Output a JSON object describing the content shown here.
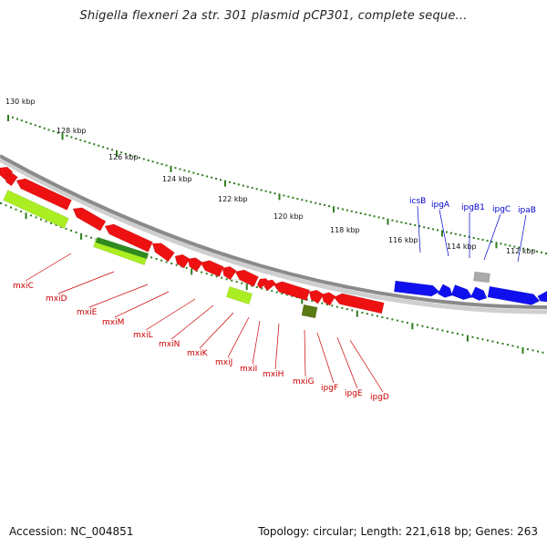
{
  "title": "Shigella flexneri 2a str. 301 plasmid pCP301, complete seque...",
  "footer": {
    "accession": "Accession: NC_004851",
    "topology": "Topology: circular; Length: 221,618 bp; Genes: 263"
  },
  "colors": {
    "backbone": "#8a8a8a",
    "tick": "#2e7d1e",
    "red_gene": "#ee1111",
    "blue_gene": "#1010ee",
    "lime_gene": "#aaee22",
    "dark_green_gene": "#2f8a1f",
    "olive_gene": "#5a7a14",
    "grey_gene": "#aaaaaa",
    "red_label": "#cc0000",
    "blue_label": "#0000cc"
  },
  "tick_labels": [
    "130 kbp",
    "128 kbp",
    "126 kbp",
    "124 kbp",
    "122 kbp",
    "120 kbp",
    "118 kbp",
    "116 kbp",
    "114 kbp",
    "112 kbp"
  ],
  "red_labels": [
    "mxiC",
    "mxiD",
    "mxiE",
    "mxiM",
    "mxiL",
    "mxiN",
    "mxiK",
    "mxiJ",
    "mxiI",
    "mxiH",
    "mxiG",
    "ipgF",
    "ipgE",
    "ipgD"
  ],
  "blue_labels": [
    "icsB",
    "ipgA",
    "ipgB1",
    "ipgC",
    "ipaB"
  ]
}
